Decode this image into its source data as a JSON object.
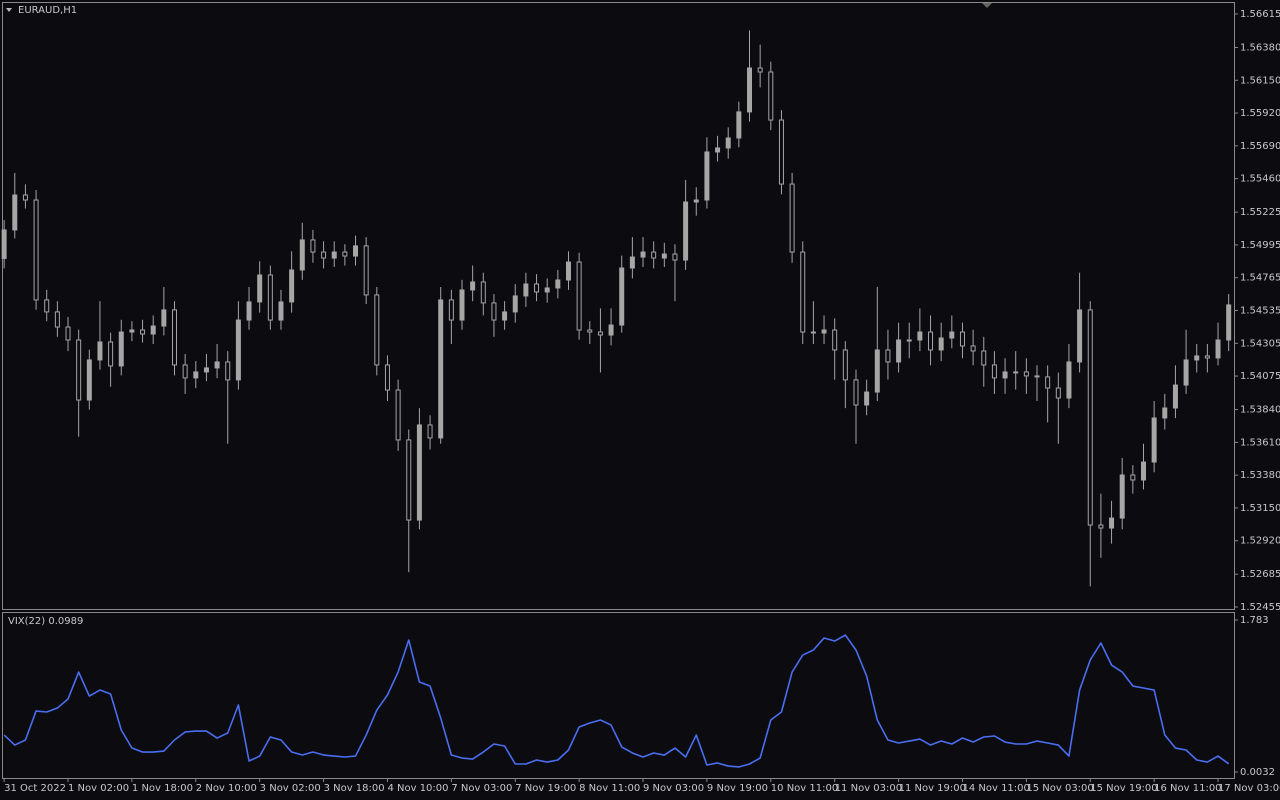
{
  "chart_data": [
    {
      "type": "candlestick",
      "title": "EURAUD,H1",
      "color": "#a6a6a6",
      "xlim": [
        -0.2,
        115.5
      ],
      "ylim": [
        1.52441,
        1.56699
      ],
      "yticks": [
        1.56615,
        {
          "value": 1.5638,
          "label": "1.56380"
        },
        {
          "value": 1.5615,
          "label": "1.56150"
        },
        {
          "value": 1.5592,
          "label": "1.55920"
        },
        {
          "value": 1.5569,
          "label": "1.55690"
        },
        {
          "value": 1.5546,
          "label": "1.55460"
        },
        1.55225,
        1.54995,
        1.54765,
        1.54535,
        1.54305,
        1.54075,
        {
          "value": 1.5384,
          "label": "1.53840"
        },
        {
          "value": 1.5361,
          "label": "1.53610"
        },
        {
          "value": 1.5338,
          "label": "1.53380"
        },
        {
          "value": 1.5315,
          "label": "1.53150"
        },
        {
          "value": 1.5292,
          "label": "1.52920"
        },
        1.52685,
        1.52455
      ],
      "open": [
        1.549,
        1.551,
        1.55345,
        1.5531,
        1.54609,
        1.54525,
        1.54419,
        1.54328,
        1.53907,
        1.54188,
        1.54314,
        1.54146,
        1.54384,
        1.54398,
        1.5437,
        1.54426,
        1.54539,
        1.54153,
        1.54062,
        1.54104,
        1.54132,
        1.54174,
        1.54048,
        1.54468,
        1.54595,
        1.54784,
        1.54468,
        1.54595,
        1.54819,
        1.5503,
        1.54945,
        1.54903,
        1.54945,
        1.54917,
        1.54988,
        1.54644,
        1.54153,
        1.53977,
        1.53627,
        1.53065,
        1.53732,
        1.53641,
        1.54609,
        1.54468,
        1.54679,
        1.54735,
        1.54588,
        1.54468,
        1.54525,
        1.54637,
        1.54721,
        1.54665,
        1.54693,
        1.54749,
        1.54875,
        1.54398,
        1.54384,
        1.54363,
        1.54433,
        1.54833,
        1.5491,
        1.54945,
        1.54903,
        1.54931,
        1.54889,
        1.55296,
        1.5531,
        1.55647,
        1.55675,
        1.55745,
        1.55928,
        1.56236,
        1.56208,
        1.55871,
        1.55422,
        1.54945,
        1.54384,
        1.54377,
        1.54398,
        1.54258,
        1.54048,
        1.53872,
        1.53963,
        1.54258,
        1.54174,
        1.54328,
        1.54328,
        1.54384,
        1.54258,
        1.54342,
        1.54384,
        1.54286,
        1.54251,
        1.54153,
        1.54062,
        1.54104,
        1.54104,
        1.54076,
        1.54069,
        1.53991,
        1.53921,
        1.54174,
        1.54539,
        1.5303,
        1.53009,
        1.53079,
        1.53381,
        1.53346,
        1.53472,
        1.53781,
        1.53851,
        1.54012,
        1.54188,
        1.54216,
        1.54202,
        1.54328
      ],
      "high": [
        1.5517,
        1.555,
        1.5542,
        1.5538,
        1.5468,
        1.546,
        1.5449,
        1.544,
        1.5426,
        1.546,
        1.5438,
        1.5447,
        1.5446,
        1.5447,
        1.545,
        1.547,
        1.546,
        1.5423,
        1.5418,
        1.5423,
        1.543,
        1.5425,
        1.546,
        1.547,
        1.5488,
        1.5485,
        1.5468,
        1.5495,
        1.5515,
        1.551,
        1.5502,
        1.5502,
        1.55,
        1.5506,
        1.5505,
        1.547,
        1.5422,
        1.5405,
        1.537,
        1.5385,
        1.538,
        1.547,
        1.5468,
        1.5475,
        1.5485,
        1.548,
        1.5465,
        1.546,
        1.5472,
        1.548,
        1.5479,
        1.5476,
        1.5482,
        1.5495,
        1.5494,
        1.5446,
        1.5455,
        1.5455,
        1.5492,
        1.5505,
        1.5505,
        1.5502,
        1.5501,
        1.55,
        1.5545,
        1.554,
        1.5575,
        1.5576,
        1.5582,
        1.56,
        1.565,
        1.564,
        1.5628,
        1.5594,
        1.555,
        1.5502,
        1.546,
        1.545,
        1.5448,
        1.5432,
        1.5412,
        1.5405,
        1.547,
        1.544,
        1.5445,
        1.5445,
        1.5455,
        1.545,
        1.5445,
        1.545,
        1.5445,
        1.544,
        1.5435,
        1.5425,
        1.542,
        1.5425,
        1.542,
        1.5415,
        1.5415,
        1.541,
        1.543,
        1.548,
        1.546,
        1.5325,
        1.532,
        1.535,
        1.5345,
        1.536,
        1.539,
        1.5395,
        1.5415,
        1.544,
        1.543,
        1.543,
        1.5445,
        1.5465
      ],
      "low": [
        1.5483,
        1.5504,
        1.5525,
        1.5454,
        1.5446,
        1.5435,
        1.5425,
        1.5365,
        1.5384,
        1.5412,
        1.54,
        1.5408,
        1.5432,
        1.5431,
        1.543,
        1.5436,
        1.5408,
        1.5395,
        1.5399,
        1.5404,
        1.5406,
        1.536,
        1.5398,
        1.544,
        1.5452,
        1.544,
        1.544,
        1.5452,
        1.5475,
        1.5487,
        1.5483,
        1.5484,
        1.5485,
        1.5485,
        1.5458,
        1.5408,
        1.539,
        1.5355,
        1.527,
        1.53,
        1.5356,
        1.536,
        1.543,
        1.544,
        1.546,
        1.545,
        1.5435,
        1.544,
        1.5445,
        1.5456,
        1.546,
        1.5459,
        1.5462,
        1.5468,
        1.5433,
        1.543,
        1.541,
        1.5429,
        1.5438,
        1.5476,
        1.5484,
        1.5483,
        1.5484,
        1.546,
        1.5482,
        1.552,
        1.5525,
        1.5558,
        1.556,
        1.5568,
        1.5586,
        1.561,
        1.558,
        1.5535,
        1.5487,
        1.543,
        1.543,
        1.543,
        1.5405,
        1.5385,
        1.536,
        1.538,
        1.539,
        1.5405,
        1.541,
        1.542,
        1.5425,
        1.5415,
        1.5418,
        1.5427,
        1.542,
        1.5415,
        1.54,
        1.5395,
        1.5395,
        1.5398,
        1.5395,
        1.539,
        1.5375,
        1.536,
        1.5385,
        1.541,
        1.526,
        1.528,
        1.529,
        1.53,
        1.5325,
        1.5328,
        1.534,
        1.537,
        1.5378,
        1.5395,
        1.541,
        1.541,
        1.5415,
        1.5425
      ],
      "close": [
        1.551,
        1.55345,
        1.5531,
        1.54609,
        1.54525,
        1.54419,
        1.54328,
        1.53907,
        1.54188,
        1.54314,
        1.54146,
        1.54384,
        1.54398,
        1.5437,
        1.54426,
        1.54539,
        1.54153,
        1.54062,
        1.54104,
        1.54132,
        1.54174,
        1.54048,
        1.54468,
        1.54595,
        1.54784,
        1.54468,
        1.54595,
        1.54819,
        1.5503,
        1.54945,
        1.54903,
        1.54945,
        1.54917,
        1.54988,
        1.54644,
        1.54153,
        1.53977,
        1.53627,
        1.53065,
        1.53732,
        1.53641,
        1.54609,
        1.54468,
        1.54679,
        1.54735,
        1.54588,
        1.54468,
        1.54525,
        1.54637,
        1.54721,
        1.54665,
        1.54693,
        1.54749,
        1.54875,
        1.54398,
        1.54384,
        1.54363,
        1.54433,
        1.54833,
        1.5491,
        1.54945,
        1.54903,
        1.54931,
        1.54889,
        1.55296,
        1.5531,
        1.55647,
        1.55675,
        1.55745,
        1.55928,
        1.56236,
        1.56208,
        1.55871,
        1.55422,
        1.54945,
        1.54384,
        1.54377,
        1.54398,
        1.54258,
        1.54048,
        1.53872,
        1.53963,
        1.54258,
        1.54174,
        1.54328,
        1.54328,
        1.54384,
        1.54258,
        1.54342,
        1.54384,
        1.54286,
        1.54251,
        1.54153,
        1.54062,
        1.54104,
        1.54104,
        1.54076,
        1.54069,
        1.53991,
        1.53921,
        1.54174,
        1.54539,
        1.5303,
        1.53009,
        1.53079,
        1.53381,
        1.53346,
        1.53472,
        1.53781,
        1.53851,
        1.54012,
        1.54188,
        1.54216,
        1.54202,
        1.54328,
        1.54574
      ]
    },
    {
      "type": "line",
      "title": "VIX(22) 0.0989",
      "color": "#4a6ef0",
      "xlim": [
        -0.2,
        115.5
      ],
      "ylim": [
        -0.067,
        1.877
      ],
      "yticks": [
        1.783,
        0.0032
      ],
      "xticks": [
        {
          "value": 0,
          "label": "31 Oct 2022"
        },
        {
          "value": 6,
          "label": "1 Nov 02:00"
        },
        {
          "value": 12,
          "label": "1 Nov 18:00"
        },
        {
          "value": 18,
          "label": "2 Nov 10:00"
        },
        {
          "value": 24,
          "label": "3 Nov 02:00"
        },
        {
          "value": 30,
          "label": "3 Nov 18:00"
        },
        {
          "value": 36,
          "label": "4 Nov 10:00"
        },
        {
          "value": 42,
          "label": "7 Nov 03:00"
        },
        {
          "value": 48,
          "label": "7 Nov 19:00"
        },
        {
          "value": 54,
          "label": "8 Nov 11:00"
        },
        {
          "value": 60,
          "label": "9 Nov 03:00"
        },
        {
          "value": 66,
          "label": "9 Nov 19:00"
        },
        {
          "value": 72,
          "label": "10 Nov 11:00"
        },
        {
          "value": 78,
          "label": "11 Nov 03:00"
        },
        {
          "value": 84,
          "label": "11 Nov 19:00"
        },
        {
          "value": 90,
          "label": "14 Nov 11:00"
        },
        {
          "value": 96,
          "label": "15 Nov 03:00"
        },
        {
          "value": 102,
          "label": "15 Nov 19:00"
        },
        {
          "value": 108,
          "label": "16 Nov 11:00"
        },
        {
          "value": 114,
          "label": "17 Nov 03:00"
        }
      ],
      "values": [
        0.436,
        0.319,
        0.378,
        0.717,
        0.706,
        0.752,
        0.858,
        1.174,
        0.893,
        0.963,
        0.916,
        0.495,
        0.284,
        0.237,
        0.237,
        0.249,
        0.378,
        0.472,
        0.483,
        0.483,
        0.401,
        0.46,
        0.788,
        0.132,
        0.19,
        0.413,
        0.378,
        0.237,
        0.202,
        0.237,
        0.202,
        0.19,
        0.179,
        0.19,
        0.436,
        0.729,
        0.905,
        1.174,
        1.549,
        1.057,
        1.01,
        0.635,
        0.202,
        0.167,
        0.155,
        0.237,
        0.331,
        0.308,
        0.097,
        0.097,
        0.144,
        0.12,
        0.144,
        0.261,
        0.53,
        0.577,
        0.612,
        0.553,
        0.296,
        0.226,
        0.179,
        0.226,
        0.202,
        0.284,
        0.179,
        0.436,
        0.085,
        0.109,
        0.073,
        0.062,
        0.097,
        0.167,
        0.612,
        0.706,
        1.174,
        1.373,
        1.432,
        1.572,
        1.537,
        1.607,
        1.432,
        1.127,
        0.612,
        0.378,
        0.343,
        0.366,
        0.389,
        0.319,
        0.366,
        0.331,
        0.401,
        0.354,
        0.413,
        0.425,
        0.354,
        0.331,
        0.331,
        0.366,
        0.343,
        0.319,
        0.19,
        0.963,
        1.315,
        1.514,
        1.256,
        1.174,
        1.01,
        0.987,
        0.963,
        0.436,
        0.284,
        0.261,
        0.144,
        0.12,
        0.19,
        0.0989
      ]
    }
  ]
}
